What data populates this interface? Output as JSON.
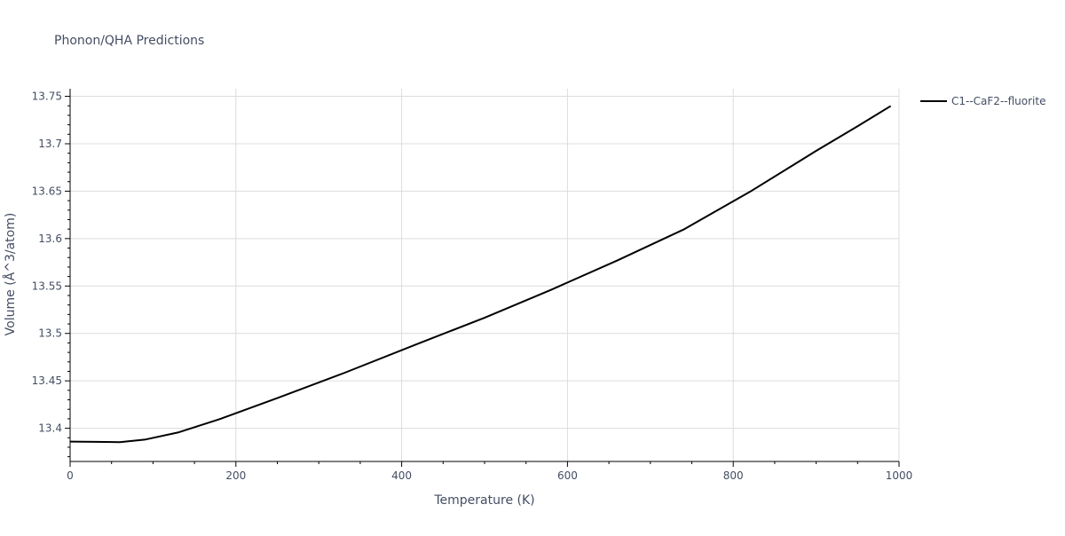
{
  "chart_data": {
    "type": "line",
    "title": "Phonon/QHA Predictions",
    "xlabel": "Temperature (K)",
    "ylabel": "Volume (Å^3/atom)",
    "xlim": [
      0,
      1000
    ],
    "ylim": [
      13.365,
      13.758
    ],
    "x_ticks": [
      0,
      200,
      400,
      600,
      800,
      1000
    ],
    "x_tick_labels": [
      "0",
      "200",
      "400",
      "600",
      "800",
      "1000"
    ],
    "y_ticks": [
      13.4,
      13.45,
      13.5,
      13.55,
      13.6,
      13.65,
      13.7,
      13.75
    ],
    "y_tick_labels": [
      "13.4",
      "13.45",
      "13.5",
      "13.55",
      "13.6",
      "13.65",
      "13.7",
      "13.75"
    ],
    "grid": true,
    "legend_position": "top-right",
    "series": [
      {
        "name": "C1--CaF2--fluorite",
        "color": "#000000",
        "x": [
          0,
          30,
          60,
          90,
          130,
          180,
          250,
          330,
          420,
          500,
          580,
          660,
          740,
          820,
          900,
          950,
          990
        ],
        "y": [
          13.3859,
          13.3857,
          13.3854,
          13.388,
          13.3955,
          13.4095,
          13.4318,
          13.4581,
          13.4893,
          13.5165,
          13.5459,
          13.5769,
          13.6095,
          13.6493,
          13.6925,
          13.7185,
          13.7398
        ]
      }
    ]
  }
}
